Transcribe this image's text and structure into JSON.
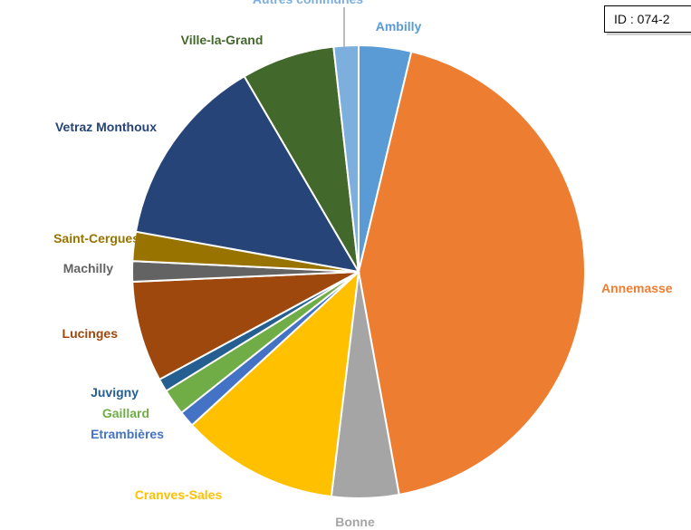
{
  "id_label": "ID : 074-2",
  "chart_data": {
    "type": "pie",
    "start": "top",
    "direction": "clockwise",
    "slices": [
      {
        "label": "Ambilly",
        "value": 3.6,
        "color": "#5b9bd5",
        "label_color": "#5b9bd5"
      },
      {
        "label": "Annemasse",
        "value": 41.7,
        "color": "#ed7d31",
        "label_color": "#ed7d31"
      },
      {
        "label": "Bonne",
        "value": 4.6,
        "color": "#a5a5a5",
        "label_color": "#a5a5a5"
      },
      {
        "label": "Cranves-Sales",
        "value": 10.8,
        "color": "#ffc000",
        "label_color": "#ffc000"
      },
      {
        "label": "Etrambières",
        "value": 1.1,
        "color": "#4472c4",
        "label_color": "#4472c4"
      },
      {
        "label": "Gaillard",
        "value": 1.8,
        "color": "#70ad47",
        "label_color": "#70ad47"
      },
      {
        "label": "Juvigny",
        "value": 0.9,
        "color": "#255e91",
        "label_color": "#255e91"
      },
      {
        "label": "Lucinges",
        "value": 6.9,
        "color": "#9e480e",
        "label_color": "#9e480e"
      },
      {
        "label": "Machilly",
        "value": 1.4,
        "color": "#636363",
        "label_color": "#636363"
      },
      {
        "label": "Saint-Cergues",
        "value": 2.0,
        "color": "#997300",
        "label_color": "#997300"
      },
      {
        "label": "Vetraz Monthoux",
        "value": 13.2,
        "color": "#264478",
        "label_color": "#264478"
      },
      {
        "label": "Ville-la-Grand",
        "value": 6.4,
        "color": "#43682b",
        "label_color": "#43682b"
      },
      {
        "label": "Autres communes",
        "value": 1.7,
        "color": "#7cafdd",
        "label_color": "#7cafdd"
      }
    ]
  }
}
